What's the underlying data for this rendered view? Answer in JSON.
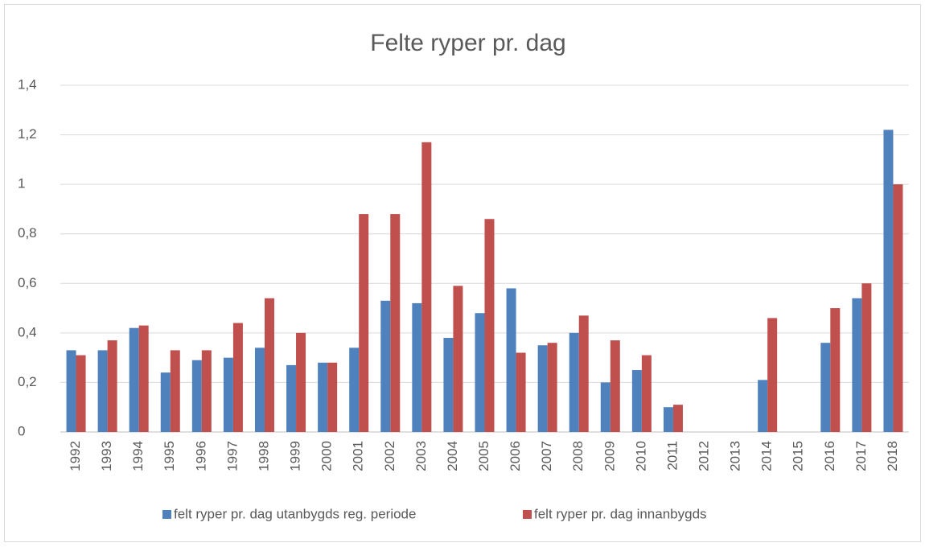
{
  "chart_data": {
    "type": "bar",
    "title": "Felte ryper pr. dag",
    "categories": [
      "1992",
      "1993",
      "1994",
      "1995",
      "1996",
      "1997",
      "1998",
      "1999",
      "2000",
      "2001",
      "2002",
      "2003",
      "2004",
      "2005",
      "2006",
      "2007",
      "2008",
      "2009",
      "2010",
      "2011",
      "2012",
      "2013",
      "2014",
      "2015",
      "2016",
      "2017",
      "2018"
    ],
    "series": [
      {
        "name": "felt ryper pr. dag utanbygds reg. periode",
        "color": "#4f81bd",
        "values": [
          0.33,
          0.33,
          0.42,
          0.24,
          0.29,
          0.3,
          0.34,
          0.27,
          0.28,
          0.34,
          0.53,
          0.52,
          0.38,
          0.48,
          0.58,
          0.35,
          0.4,
          0.2,
          0.25,
          0.1,
          null,
          null,
          0.21,
          null,
          0.36,
          0.54,
          1.22
        ]
      },
      {
        "name": "felt ryper pr. dag innanbygds",
        "color": "#c0504d",
        "values": [
          0.31,
          0.37,
          0.43,
          0.33,
          0.33,
          0.44,
          0.54,
          0.4,
          0.28,
          0.88,
          0.88,
          1.17,
          0.59,
          0.86,
          0.32,
          0.36,
          0.47,
          0.37,
          0.31,
          0.11,
          null,
          null,
          0.46,
          null,
          0.5,
          0.6,
          1.0
        ]
      }
    ],
    "ylim": [
      0,
      1.4
    ],
    "yticks": [
      0,
      {
        "value": 0.2,
        "label": "0,2"
      },
      {
        "value": 0.4,
        "label": "0,4"
      },
      {
        "value": 0.6,
        "label": "0,6"
      },
      {
        "value": 0.8,
        "label": "0,8"
      },
      1,
      {
        "value": 1.2,
        "label": "1,2"
      },
      {
        "value": 1.4,
        "label": "1,4"
      }
    ],
    "grid": true,
    "legend": "bottom"
  }
}
